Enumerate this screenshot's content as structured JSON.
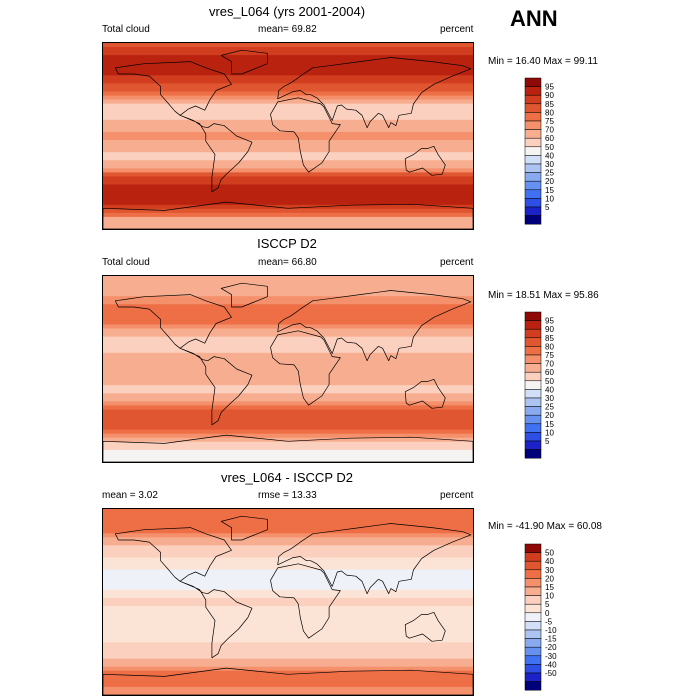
{
  "season_label": "ANN",
  "palettes": {
    "absolute": [
      "#00007a",
      "#1a22c8",
      "#2d4fe6",
      "#3f71f2",
      "#6591f0",
      "#8aaaf0",
      "#adc4f3",
      "#d1dff7",
      "#f6f4f2",
      "#fbd0bf",
      "#f7ae90",
      "#f4906b",
      "#ee6f45",
      "#e05630",
      "#d13d1f",
      "#b8220f",
      "#8f0a06"
    ],
    "difference": [
      "#00007a",
      "#1a22c8",
      "#2d4fe6",
      "#3f71f2",
      "#6591f0",
      "#8aaaf0",
      "#adc4f3",
      "#d1dff7",
      "#eef1f7",
      "#fbe3d6",
      "#fbd0bf",
      "#f7ae90",
      "#f4906b",
      "#ee6f45",
      "#e05630",
      "#d13d1f",
      "#8f0a06"
    ]
  },
  "chart_data": [
    {
      "type": "heatmap",
      "title": "vres_L064 (yrs 2001-2004)",
      "left_label": "Total cloud",
      "center_label": "mean=  69.82",
      "right_label": "percent",
      "minmax_label": "Min =  16.40 Max =  99.11",
      "min": 16.4,
      "max": 99.11,
      "mean": 69.82,
      "units": "percent",
      "palette": "absolute",
      "colorbar_levels": [
        "95",
        "90",
        "85",
        "80",
        "75",
        "70",
        "60",
        "50",
        "40",
        "30",
        "25",
        "20",
        "15",
        "10",
        "5"
      ],
      "zonal_profile": {
        "lat": [
          90,
          80,
          70,
          60,
          50,
          40,
          30,
          20,
          10,
          0,
          -10,
          -20,
          -30,
          -40,
          -50,
          -60,
          -70,
          -80,
          -90
        ],
        "value": [
          82,
          90,
          92,
          90,
          86,
          76,
          60,
          52,
          66,
          74,
          63,
          58,
          66,
          86,
          92,
          93,
          88,
          70,
          60
        ]
      }
    },
    {
      "type": "heatmap",
      "title": "ISCCP D2",
      "left_label": "Total cloud",
      "center_label": "mean=  66.80",
      "right_label": "percent",
      "minmax_label": "Min =  18.51 Max =  95.86",
      "min": 18.51,
      "max": 95.86,
      "mean": 66.8,
      "units": "percent",
      "palette": "absolute",
      "colorbar_levels": [
        "95",
        "90",
        "85",
        "80",
        "75",
        "70",
        "60",
        "50",
        "40",
        "30",
        "25",
        "20",
        "15",
        "10",
        "5"
      ],
      "zonal_profile": {
        "lat": [
          90,
          80,
          70,
          60,
          50,
          40,
          30,
          20,
          10,
          0,
          -10,
          -20,
          -30,
          -40,
          -50,
          -60,
          -70,
          -80,
          -90
        ],
        "value": [
          62,
          68,
          70,
          76,
          80,
          72,
          60,
          56,
          64,
          68,
          62,
          58,
          66,
          80,
          84,
          80,
          60,
          48,
          44
        ]
      }
    },
    {
      "type": "heatmap",
      "title": "vres_L064 - ISCCP D2",
      "left_label": "mean =   3.02",
      "center_label": "rmse =  13.33",
      "right_label": "percent",
      "minmax_label": "Min = -41.90 Max =  60.08",
      "min": -41.9,
      "max": 60.08,
      "mean": 3.02,
      "rmse": 13.33,
      "units": "percent",
      "palette": "difference",
      "colorbar_levels": [
        "50",
        "40",
        "30",
        "20",
        "15",
        "10",
        "5",
        "0",
        "-5",
        "-10",
        "-15",
        "-20",
        "-30",
        "-40",
        "-50"
      ],
      "zonal_profile": {
        "lat": [
          90,
          80,
          70,
          60,
          50,
          40,
          30,
          20,
          10,
          0,
          -10,
          -20,
          -30,
          -40,
          -50,
          -60,
          -70,
          -80,
          -90
        ],
        "value": [
          20,
          22,
          22,
          14,
          6,
          4,
          0,
          -4,
          2,
          6,
          1,
          0,
          0,
          6,
          8,
          13,
          28,
          22,
          16
        ]
      }
    }
  ]
}
